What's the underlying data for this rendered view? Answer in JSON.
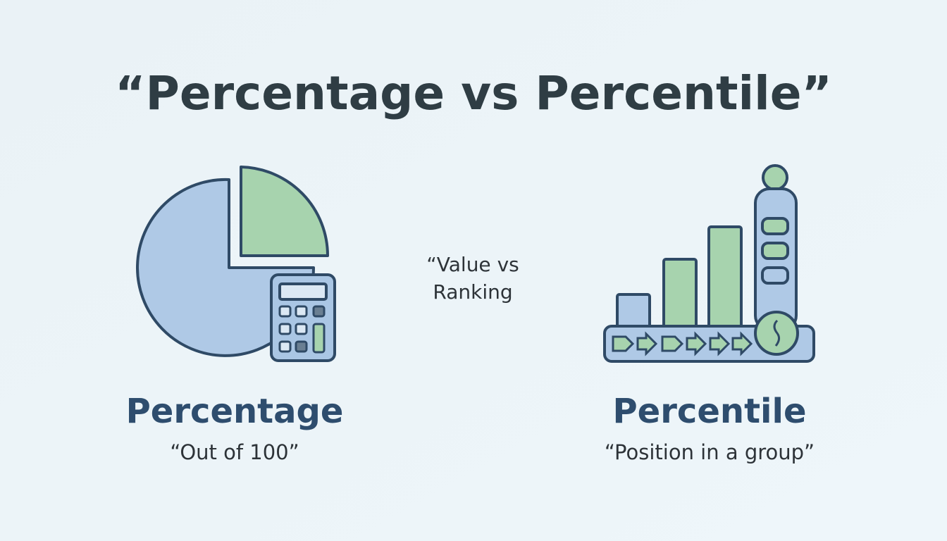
{
  "title": "“Percentage vs Percentile”",
  "middle": {
    "lines": [
      "“Value vs",
      "Ranking"
    ]
  },
  "left": {
    "label": "Percentage",
    "caption": "“Out of 100”"
  },
  "right": {
    "label": "Percentile",
    "caption": "“Position in a group”"
  }
}
